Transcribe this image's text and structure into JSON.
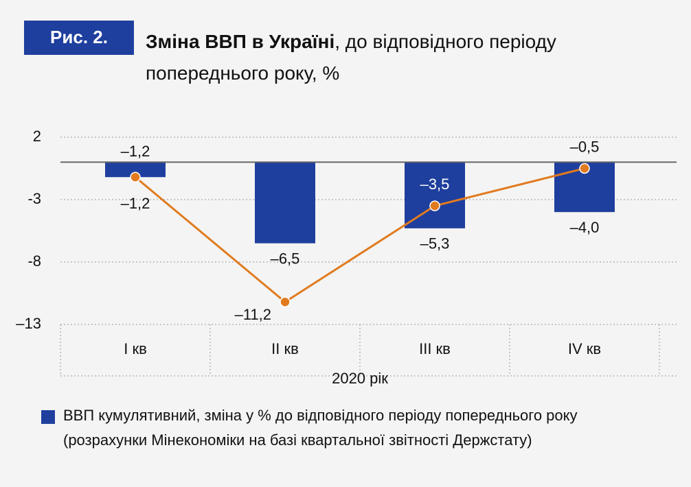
{
  "chart_data": {
    "type": "bar_line",
    "figure_label": "Рис. 2.",
    "title": "Зміна ВВП в Україні",
    "subtitle": ", до відповідного періоду попереднього року, %",
    "xlabel": "2020 рік",
    "categories": [
      "І кв",
      "ІІ кв",
      "ІІІ кв",
      "IV кв"
    ],
    "series": [
      {
        "name": "ВВП кумулятивний, зміна у % до відповідного періоду попереднього року (розрахунки Мінекономіки на базі квартальної звітності Держстату)",
        "type": "bar",
        "color": "#1f3f9e",
        "values": [
          -1.2,
          -6.5,
          -5.3,
          -4.0
        ],
        "value_labels": [
          "–1,2",
          "–6,5",
          "–5,3",
          "–4,0"
        ]
      },
      {
        "type": "line",
        "color": "#e07b1f",
        "values": [
          -1.2,
          -11.2,
          -3.5,
          -0.5
        ],
        "value_labels": [
          "–1,2",
          "–11,2",
          "–3,5",
          "–0,5"
        ]
      }
    ],
    "ylim": [
      -13,
      2
    ],
    "yticks": [
      2,
      -3,
      -8,
      {
        "value": -13,
        "label": "–13"
      }
    ],
    "grid": true
  }
}
